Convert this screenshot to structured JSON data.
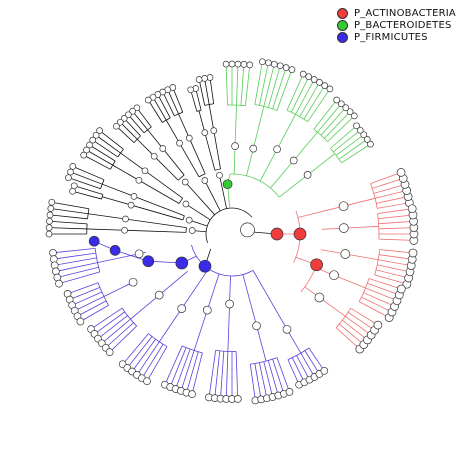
{
  "legend": [
    {
      "label": "P_ACTINOBACTERIA",
      "color": "#f03c3c"
    },
    {
      "label": "P_BACTEROIDETES",
      "color": "#33cc33"
    },
    {
      "label": "P_FIRMICUTES",
      "color": "#3a2be8"
    }
  ],
  "colors": {
    "root": "#000000",
    "node_fill": "#ffffff",
    "node_stroke": "#333333"
  }
}
